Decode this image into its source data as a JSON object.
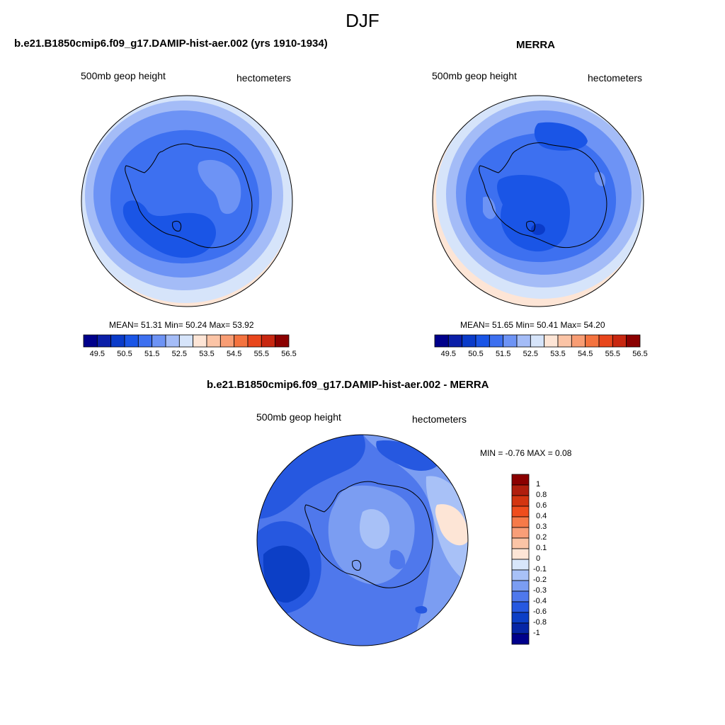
{
  "figure": {
    "season": "DJF"
  },
  "panels": {
    "model": {
      "title": "b.e21.B1850cmip6.f09_g17.DAMIP-hist-aer.002 (yrs 1910-1934)",
      "left_label": "500mb geop height",
      "right_label": "hectometers",
      "stats": {
        "mean_label": "MEAN=",
        "mean": "51.31",
        "min_label": "Min=",
        "min": "50.24",
        "max_label": "Max=",
        "max": "53.92"
      }
    },
    "obs": {
      "title": "MERRA",
      "left_label": "500mb geop height",
      "right_label": "hectometers",
      "stats": {
        "mean_label": "MEAN=",
        "mean": "51.65",
        "min_label": "Min=",
        "min": "50.41",
        "max_label": "Max=",
        "max": "54.20"
      }
    },
    "diff": {
      "title": "b.e21.B1850cmip6.f09_g17.DAMIP-hist-aer.002 - MERRA",
      "left_label": "500mb geop height",
      "right_label": "hectometers",
      "minmax": "MIN =  -0.76 MAX =   0.08"
    }
  },
  "colorbars": {
    "abs": {
      "colors": [
        "#00008b",
        "#0b1fa8",
        "#0a3bc9",
        "#1a55e6",
        "#3d70f0",
        "#6d93f5",
        "#a4bcf7",
        "#d6e4fa",
        "#fde5d6",
        "#fbc4a6",
        "#f89d74",
        "#f4733f",
        "#e8461c",
        "#c82710",
        "#8b0000"
      ],
      "labels": [
        "49.5",
        "50.5",
        "51.5",
        "52.5",
        "53.5",
        "54.5",
        "55.5",
        "56.5"
      ]
    },
    "diff": {
      "colors": [
        "#8b0000",
        "#b01e0d",
        "#d33510",
        "#ef4d1d",
        "#f67a49",
        "#f99e78",
        "#fbc4a6",
        "#fde5d6",
        "#d8e6fa",
        "#a8c1f7",
        "#7b9df2",
        "#4f78ec",
        "#2658e0",
        "#0c3fc6",
        "#0626a6",
        "#00008b"
      ],
      "labels": [
        "1",
        "0.8",
        "0.6",
        "0.4",
        "0.3",
        "0.2",
        "0.1",
        "0",
        "-0.1",
        "-0.2",
        "-0.3",
        "-0.4",
        "-0.6",
        "-0.8",
        "-1"
      ]
    }
  },
  "map_colors": {
    "abs_fills": [
      "#fde5d6",
      "#d6e4fa",
      "#a4bcf7",
      "#6d93f5",
      "#3d70f0",
      "#1a55e6",
      "#0a3bc9"
    ],
    "diff_fills": [
      "#d8e6fa",
      "#a8c1f7",
      "#7b9df2",
      "#4f78ec",
      "#2658e0",
      "#0c3fc6",
      "#fde5d6"
    ],
    "coast": "#000000"
  }
}
